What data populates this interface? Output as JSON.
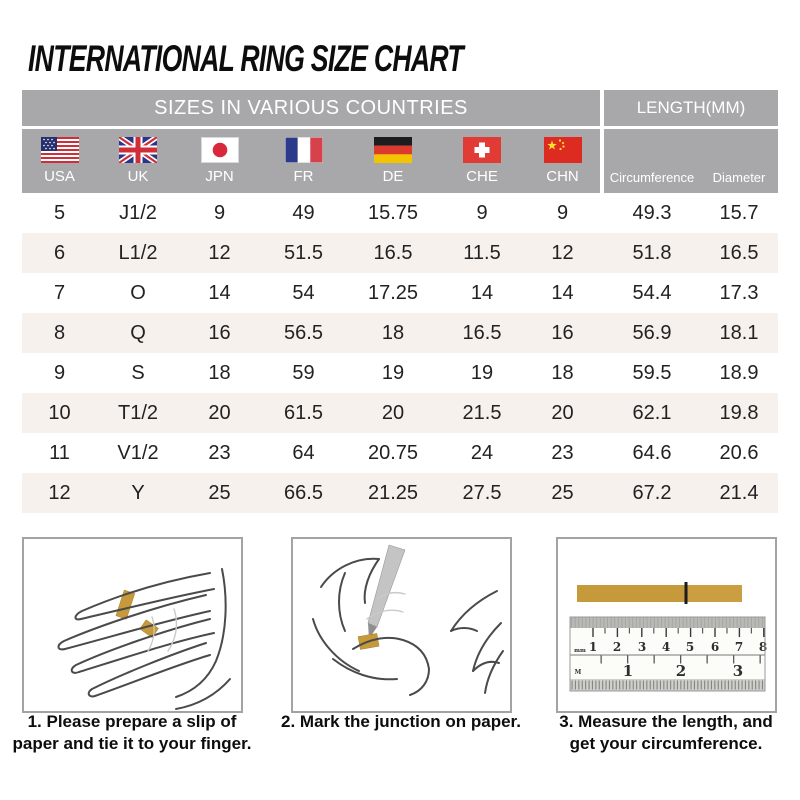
{
  "title": "INTERNATIONAL RING SIZE CHART",
  "table": {
    "sizes_group_label": "SIZES IN VARIOUS COUNTRIES",
    "length_group_label": "LENGTH(MM)"
  },
  "chart_data": {
    "type": "table",
    "title": "INTERNATIONAL RING SIZE CHART",
    "column_groups": [
      {
        "label": "SIZES IN VARIOUS COUNTRIES",
        "columns": [
          "USA",
          "UK",
          "JPN",
          "FR",
          "DE",
          "CHE",
          "CHN"
        ]
      },
      {
        "label": "LENGTH(MM)",
        "columns": [
          "Circumference",
          "Diameter"
        ]
      }
    ],
    "columns": [
      "USA",
      "UK",
      "JPN",
      "FR",
      "DE",
      "CHE",
      "CHN",
      "Circumference",
      "Diameter"
    ],
    "rows": [
      [
        "5",
        "J1/2",
        "9",
        "49",
        "15.75",
        "9",
        "9",
        "49.3",
        "15.7"
      ],
      [
        "6",
        "L1/2",
        "12",
        "51.5",
        "16.5",
        "11.5",
        "12",
        "51.8",
        "16.5"
      ],
      [
        "7",
        "O",
        "14",
        "54",
        "17.25",
        "14",
        "14",
        "54.4",
        "17.3"
      ],
      [
        "8",
        "Q",
        "16",
        "56.5",
        "18",
        "16.5",
        "16",
        "56.9",
        "18.1"
      ],
      [
        "9",
        "S",
        "18",
        "59",
        "19",
        "19",
        "18",
        "59.5",
        "18.9"
      ],
      [
        "10",
        "T1/2",
        "20",
        "61.5",
        "20",
        "21.5",
        "20",
        "62.1",
        "19.8"
      ],
      [
        "11",
        "V1/2",
        "23",
        "64",
        "20.75",
        "24",
        "23",
        "64.6",
        "20.6"
      ],
      [
        "12",
        "Y",
        "25",
        "66.5",
        "21.25",
        "27.5",
        "25",
        "67.2",
        "21.4"
      ]
    ]
  },
  "flags": [
    {
      "country": "USA",
      "icon": "usa-flag-icon"
    },
    {
      "country": "UK",
      "icon": "uk-flag-icon"
    },
    {
      "country": "JPN",
      "icon": "japan-flag-icon"
    },
    {
      "country": "FR",
      "icon": "france-flag-icon"
    },
    {
      "country": "DE",
      "icon": "germany-flag-icon"
    },
    {
      "country": "CHE",
      "icon": "switzerland-flag-icon"
    },
    {
      "country": "CHN",
      "icon": "china-flag-icon"
    }
  ],
  "steps": [
    {
      "caption": "1. Please prepare a slip of paper and tie it to your finger.",
      "illustration": "hand-with-paper-strip-illustration"
    },
    {
      "caption": "2. Mark the junction on paper.",
      "illustration": "marking-junction-illustration"
    },
    {
      "caption": "3. Measure the length, and get your circumference.",
      "illustration": "ruler-measurement-illustration"
    }
  ],
  "ruler": {
    "unit_top": "mm",
    "cm_numbers": [
      "1",
      "2",
      "3",
      "4",
      "5",
      "6",
      "7",
      "8"
    ],
    "unit_bottom": "M",
    "inch_numbers": [
      "1",
      "2",
      "3"
    ]
  },
  "colors": {
    "header_gray": "#a8a8ab",
    "alt_row": "#f7f1ee",
    "paper_strip_tan": "#c6993b",
    "text_dark": "#222222",
    "header_text": "#ffffff"
  }
}
